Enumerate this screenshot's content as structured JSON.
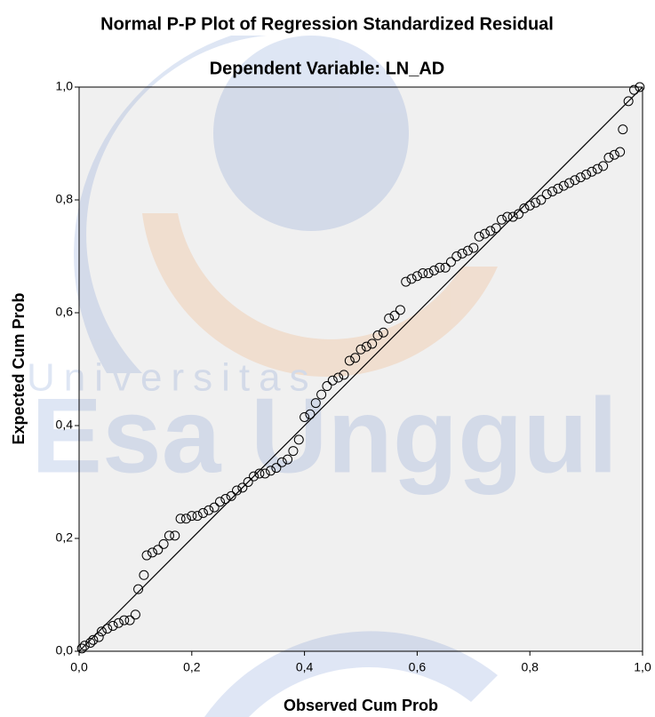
{
  "chart_data": {
    "type": "scatter",
    "title": "Normal P-P Plot of Regression Standardized Residual",
    "subtitle": "Dependent Variable: LN_AD",
    "x_label": "Observed Cum Prob",
    "y_label": "Expected Cum Prob",
    "watermark": {
      "line1": "Universitas",
      "line2": "Esa Unggul"
    },
    "color": "#000000",
    "xlim": [
      0,
      1
    ],
    "ylim": [
      0,
      1
    ],
    "xticks": [
      {
        "value": 0,
        "label": "0,0"
      },
      {
        "value": 0.2,
        "label": "0,2"
      },
      {
        "value": 0.4,
        "label": "0,4"
      },
      {
        "value": 0.6,
        "label": "0,6"
      },
      {
        "value": 0.8,
        "label": "0,8"
      },
      {
        "value": 1,
        "label": "1,0"
      }
    ],
    "yticks": [
      {
        "value": 0,
        "label": "0,0"
      },
      {
        "value": 0.2,
        "label": "0,2"
      },
      {
        "value": 0.4,
        "label": "0,4"
      },
      {
        "value": 0.6,
        "label": "0,6"
      },
      {
        "value": 0.8,
        "label": "0,8"
      },
      {
        "value": 1,
        "label": "1,0"
      }
    ],
    "x": [
      0.005,
      0.01,
      0.02,
      0.025,
      0.035,
      0.04,
      0.05,
      0.06,
      0.07,
      0.08,
      0.09,
      0.1,
      0.105,
      0.115,
      0.12,
      0.13,
      0.14,
      0.15,
      0.16,
      0.17,
      0.18,
      0.19,
      0.2,
      0.21,
      0.22,
      0.23,
      0.24,
      0.25,
      0.26,
      0.27,
      0.28,
      0.29,
      0.3,
      0.31,
      0.32,
      0.33,
      0.34,
      0.35,
      0.36,
      0.37,
      0.38,
      0.39,
      0.4,
      0.41,
      0.42,
      0.43,
      0.44,
      0.45,
      0.46,
      0.47,
      0.48,
      0.49,
      0.5,
      0.51,
      0.52,
      0.53,
      0.54,
      0.55,
      0.56,
      0.57,
      0.58,
      0.59,
      0.6,
      0.61,
      0.62,
      0.63,
      0.64,
      0.65,
      0.66,
      0.67,
      0.68,
      0.69,
      0.7,
      0.71,
      0.72,
      0.73,
      0.74,
      0.75,
      0.76,
      0.77,
      0.78,
      0.79,
      0.8,
      0.81,
      0.82,
      0.83,
      0.84,
      0.85,
      0.86,
      0.87,
      0.88,
      0.89,
      0.9,
      0.91,
      0.92,
      0.93,
      0.94,
      0.95,
      0.96,
      0.965,
      0.975,
      0.985,
      0.995
    ],
    "values": [
      0.005,
      0.01,
      0.015,
      0.02,
      0.025,
      0.035,
      0.04,
      0.045,
      0.05,
      0.055,
      0.055,
      0.065,
      0.11,
      0.135,
      0.17,
      0.175,
      0.18,
      0.19,
      0.205,
      0.205,
      0.235,
      0.235,
      0.24,
      0.24,
      0.245,
      0.25,
      0.255,
      0.265,
      0.27,
      0.275,
      0.285,
      0.29,
      0.3,
      0.31,
      0.315,
      0.315,
      0.32,
      0.325,
      0.335,
      0.34,
      0.355,
      0.375,
      0.415,
      0.42,
      0.44,
      0.455,
      0.47,
      0.48,
      0.485,
      0.49,
      0.515,
      0.52,
      0.535,
      0.54,
      0.545,
      0.56,
      0.565,
      0.59,
      0.595,
      0.605,
      0.655,
      0.66,
      0.665,
      0.67,
      0.67,
      0.675,
      0.68,
      0.68,
      0.69,
      0.7,
      0.705,
      0.71,
      0.715,
      0.735,
      0.74,
      0.745,
      0.75,
      0.765,
      0.77,
      0.77,
      0.775,
      0.785,
      0.79,
      0.795,
      0.8,
      0.81,
      0.815,
      0.82,
      0.825,
      0.83,
      0.835,
      0.84,
      0.845,
      0.85,
      0.855,
      0.86,
      0.875,
      0.88,
      0.885,
      0.925,
      0.975,
      0.995,
      1.0
    ]
  }
}
